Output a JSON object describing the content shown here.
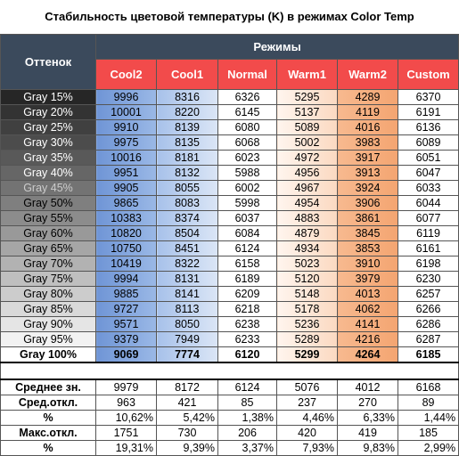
{
  "title": "Стабильность цветовой температуры (K) в режимах Color Temp",
  "table": {
    "corner": "Оттенок",
    "group": "Режимы",
    "columns": [
      "Cool2",
      "Cool1",
      "Normal",
      "Warm1",
      "Warm2",
      "Custom"
    ],
    "rows": [
      [
        "Gray 15%",
        9996,
        8316,
        6326,
        5295,
        4289,
        6370
      ],
      [
        "Gray 20%",
        10001,
        8220,
        6145,
        5137,
        4119,
        6191
      ],
      [
        "Gray 25%",
        9910,
        8139,
        6080,
        5089,
        4016,
        6136
      ],
      [
        "Gray 30%",
        9975,
        8135,
        6068,
        5002,
        3983,
        6089
      ],
      [
        "Gray 35%",
        10016,
        8181,
        6023,
        4972,
        3917,
        6051
      ],
      [
        "Gray 40%",
        9951,
        8132,
        5988,
        4956,
        3913,
        6047
      ],
      [
        "Gray 45%",
        9905,
        8055,
        6002,
        4967,
        3924,
        6033
      ],
      [
        "Gray 50%",
        9865,
        8083,
        5998,
        4954,
        3906,
        6044
      ],
      [
        "Gray 55%",
        10383,
        8374,
        6037,
        4883,
        3861,
        6077
      ],
      [
        "Gray 60%",
        10820,
        8504,
        6084,
        4879,
        3845,
        6119
      ],
      [
        "Gray 65%",
        10750,
        8451,
        6124,
        4934,
        3853,
        6161
      ],
      [
        "Gray 70%",
        10419,
        8322,
        6158,
        5023,
        3910,
        6198
      ],
      [
        "Gray 75%",
        9994,
        8131,
        6189,
        5120,
        3979,
        6230
      ],
      [
        "Gray 80%",
        9885,
        8141,
        6209,
        5148,
        4013,
        6257
      ],
      [
        "Gray 85%",
        9727,
        8113,
        6218,
        5178,
        4062,
        6266
      ],
      [
        "Gray 90%",
        9571,
        8050,
        6238,
        5236,
        4141,
        6286
      ],
      [
        "Gray 95%",
        9379,
        7949,
        6233,
        5289,
        4216,
        6287
      ],
      [
        "Gray 100%",
        9069,
        7774,
        6120,
        5299,
        4264,
        6185
      ]
    ],
    "stats": [
      [
        "Среднее зн.",
        9979,
        8172,
        6124,
        5076,
        4012,
        6168
      ],
      [
        "Сред.откл.",
        963,
        421,
        85,
        237,
        270,
        89
      ],
      [
        "%",
        "10,62%",
        "5,42%",
        "1,38%",
        "4,46%",
        "6,33%",
        "1,44%"
      ],
      [
        "Макс.откл.",
        1751,
        730,
        206,
        420,
        419,
        185
      ],
      [
        "%",
        "19,31%",
        "9,39%",
        "3,37%",
        "7,93%",
        "9,83%",
        "2,99%"
      ]
    ]
  }
}
